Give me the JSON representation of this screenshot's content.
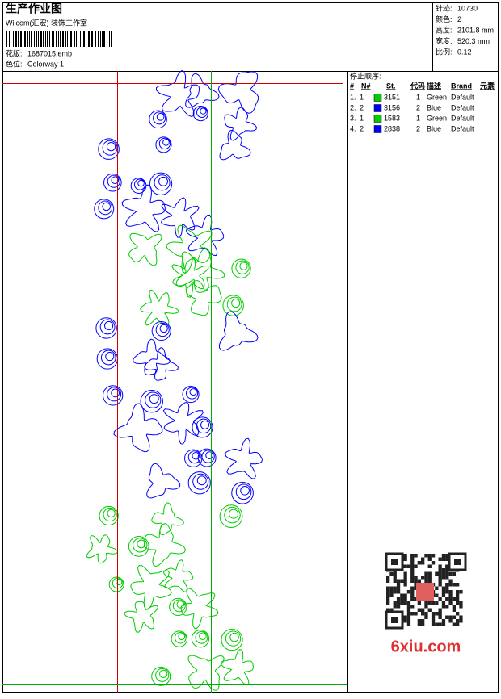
{
  "header": {
    "title": "生产作业图",
    "studio": "Wilcom(汇宏) 装饰工作室",
    "design_label": "花版:",
    "design_file": "1687015.emb",
    "colorway_label": "色位:",
    "colorway": "Colorway 1"
  },
  "info": [
    {
      "label": "针迹:",
      "value": "10730"
    },
    {
      "label": "颜色:",
      "value": "2"
    },
    {
      "label": "高度:",
      "value": "2101.8 mm"
    },
    {
      "label": "宽度:",
      "value": "520.3 mm"
    },
    {
      "label": "比例:",
      "value": "0.12"
    }
  ],
  "stop_sequence": {
    "title": "停止顺序:",
    "columns": [
      "#",
      "N#",
      "St.",
      "代码",
      "描述",
      "Brand",
      "元素"
    ],
    "rows": [
      {
        "order": "1.",
        "needle": "1",
        "color": "#00cc00",
        "stitches": "3151",
        "code": "1",
        "desc": "Green",
        "brand": "Default"
      },
      {
        "order": "2.",
        "needle": "2",
        "color": "#0000ff",
        "stitches": "3156",
        "code": "2",
        "desc": "Blue",
        "brand": "Default"
      },
      {
        "order": "3.",
        "needle": "1",
        "color": "#00cc00",
        "stitches": "1583",
        "code": "1",
        "desc": "Green",
        "brand": "Default"
      },
      {
        "order": "4.",
        "needle": "2",
        "color": "#0000ff",
        "stitches": "2838",
        "code": "2",
        "desc": "Blue",
        "brand": "Default"
      }
    ]
  },
  "watermark": "6xiu.com"
}
